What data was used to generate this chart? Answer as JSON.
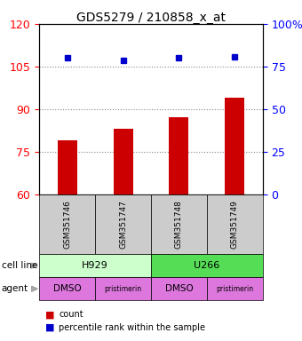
{
  "title": "GDS5279 / 210858_x_at",
  "samples": [
    "GSM351746",
    "GSM351747",
    "GSM351748",
    "GSM351749"
  ],
  "bar_values": [
    79,
    83,
    87,
    94
  ],
  "percentile_values": [
    108,
    107,
    108,
    108.5
  ],
  "ylim_left": [
    60,
    120
  ],
  "ylim_right": [
    0,
    100
  ],
  "yticks_left": [
    60,
    75,
    90,
    105,
    120
  ],
  "yticks_right": [
    0,
    25,
    50,
    75,
    100
  ],
  "bar_color": "#cc0000",
  "dot_color": "#0000cc",
  "cell_lines": [
    "H929",
    "U266"
  ],
  "cell_line_colors": [
    "#ccffcc",
    "#55dd55"
  ],
  "cell_line_spans": [
    [
      0,
      2
    ],
    [
      2,
      4
    ]
  ],
  "agents": [
    "DMSO",
    "pristimerin",
    "DMSO",
    "pristimerin"
  ],
  "agent_color": "#dd77dd",
  "sample_box_color": "#cccccc",
  "grid_color": "#888888",
  "background_color": "#ffffff",
  "legend_bar_label": "count",
  "legend_dot_label": "percentile rank within the sample"
}
